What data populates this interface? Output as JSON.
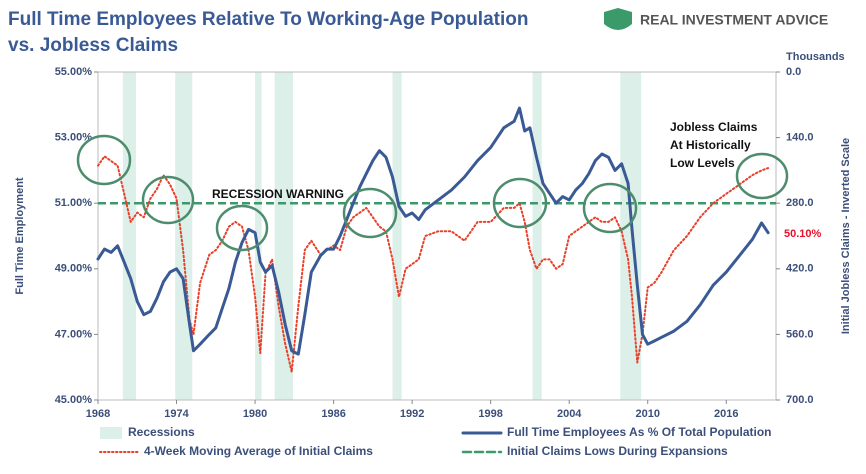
{
  "chart_data": {
    "type": "line",
    "title": [
      "Full Time Employees Relative To Working-Age Population",
      "vs. Jobless Claims"
    ],
    "source_logo": "REAL INVESTMENT ADVICE",
    "ylabel": "Full Time Employment",
    "y2label": "Initial Jobless Claims - Inverted Scale",
    "y2unit": "Thousands",
    "y2inverted": true,
    "xlim": [
      1968,
      2019.8
    ],
    "xticks": [
      1968,
      1974,
      1980,
      1986,
      1992,
      1998,
      2004,
      2010,
      2016
    ],
    "ylim": [
      45,
      55
    ],
    "yticks": [
      {
        "value": 45,
        "label": "45.00%"
      },
      {
        "value": 47,
        "label": "47.00%"
      },
      {
        "value": 49,
        "label": "49.00%"
      },
      {
        "value": 51,
        "label": "51.00%"
      },
      {
        "value": 53,
        "label": "53.00%"
      },
      {
        "value": 55,
        "label": "55.00%"
      }
    ],
    "y2lim": [
      0,
      700
    ],
    "y2ticks": [
      {
        "value": 0,
        "label": "0.0"
      },
      {
        "value": 140,
        "label": "140.0"
      },
      {
        "value": 280,
        "label": "280.0"
      },
      {
        "value": 420,
        "label": "420.0"
      },
      {
        "value": 560,
        "label": "560.0"
      },
      {
        "value": 700,
        "label": "700.0"
      }
    ],
    "recessions": {
      "name": "Recessions",
      "color": "#dcefe9",
      "periods": [
        [
          1969.9,
          1970.9
        ],
        [
          1973.9,
          1975.2
        ],
        [
          1980.0,
          1980.5
        ],
        [
          1981.5,
          1982.9
        ],
        [
          1990.5,
          1991.2
        ],
        [
          2001.2,
          2001.9
        ],
        [
          2007.9,
          2009.5
        ]
      ]
    },
    "x": [
      1968.0,
      1968.5,
      1969.0,
      1969.5,
      1970.0,
      1970.5,
      1971.0,
      1971.5,
      1972.0,
      1972.5,
      1973.0,
      1973.5,
      1974.0,
      1974.5,
      1975.0,
      1975.3,
      1975.8,
      1976.5,
      1977.0,
      1977.5,
      1978.0,
      1978.5,
      1979.0,
      1979.5,
      1980.0,
      1980.4,
      1980.8,
      1981.3,
      1981.8,
      1982.3,
      1982.8,
      1983.3,
      1983.8,
      1984.3,
      1985.0,
      1985.5,
      1986.0,
      1986.5,
      1987.0,
      1987.5,
      1988.0,
      1988.5,
      1989.0,
      1989.5,
      1990.0,
      1990.5,
      1991.0,
      1991.5,
      1992.0,
      1992.5,
      1993.0,
      1994.0,
      1995.0,
      1996.0,
      1997.0,
      1998.0,
      1999.0,
      1999.8,
      2000.2,
      2000.6,
      2001.0,
      2001.5,
      2002.0,
      2002.5,
      2003.0,
      2003.5,
      2004.0,
      2004.5,
      2005.0,
      2005.5,
      2006.0,
      2006.5,
      2007.0,
      2007.5,
      2008.0,
      2008.5,
      2008.8,
      2009.2,
      2009.6,
      2010.0,
      2010.5,
      2011.0,
      2012.0,
      2013.0,
      2014.0,
      2015.0,
      2016.0,
      2017.0,
      2018.0,
      2018.7,
      2019.2
    ],
    "series": [
      {
        "name": "Full Time Employees As % Of Total Population",
        "color": "#3a5a95",
        "axis": "y",
        "style": "solid",
        "values": [
          49.3,
          49.6,
          49.5,
          49.7,
          49.2,
          48.7,
          48.0,
          47.6,
          47.7,
          48.1,
          48.6,
          48.9,
          49.0,
          48.7,
          47.3,
          46.5,
          46.7,
          47.0,
          47.2,
          47.8,
          48.4,
          49.2,
          49.8,
          50.2,
          50.1,
          49.2,
          48.9,
          49.1,
          48.3,
          47.3,
          46.5,
          46.4,
          47.6,
          48.9,
          49.4,
          49.6,
          49.6,
          50.0,
          50.5,
          51.0,
          51.5,
          51.9,
          52.3,
          52.6,
          52.4,
          51.8,
          50.9,
          50.6,
          50.7,
          50.5,
          50.8,
          51.1,
          51.4,
          51.8,
          52.3,
          52.7,
          53.3,
          53.5,
          53.9,
          53.2,
          53.3,
          52.4,
          51.6,
          51.3,
          51.0,
          51.2,
          51.1,
          51.4,
          51.6,
          51.9,
          52.3,
          52.5,
          52.4,
          52.0,
          52.2,
          51.6,
          50.2,
          48.5,
          47.0,
          46.7,
          46.8,
          46.9,
          47.1,
          47.4,
          47.9,
          48.5,
          48.9,
          49.4,
          49.9,
          50.4,
          50.1
        ]
      },
      {
        "name": "4-Week Moving Average of Initial Claims",
        "color": "#e8402a",
        "axis": "y2",
        "style": "dotted",
        "values": [
          200,
          180,
          190,
          200,
          260,
          320,
          300,
          310,
          270,
          250,
          220,
          240,
          270,
          380,
          530,
          560,
          450,
          390,
          380,
          360,
          330,
          320,
          330,
          380,
          480,
          600,
          430,
          400,
          500,
          580,
          640,
          500,
          380,
          360,
          390,
          380,
          370,
          380,
          330,
          310,
          300,
          290,
          310,
          330,
          340,
          400,
          480,
          420,
          410,
          400,
          350,
          340,
          340,
          360,
          320,
          320,
          290,
          290,
          280,
          320,
          380,
          420,
          400,
          400,
          420,
          410,
          350,
          340,
          330,
          320,
          310,
          320,
          320,
          310,
          340,
          400,
          480,
          620,
          560,
          460,
          450,
          430,
          380,
          350,
          310,
          280,
          260,
          240,
          220,
          210,
          205
        ]
      }
    ],
    "reference_line": {
      "name": "Initial Claims Lows During Expansions",
      "color": "#3a9a6a",
      "value": 280,
      "axis": "y2"
    },
    "annotations": [
      {
        "text": "RECESSION WARNING"
      },
      {
        "text": [
          "Jobless Claims",
          "At Historically",
          "Low Levels"
        ]
      },
      {
        "text": "50.10%",
        "color": "#e8102a"
      }
    ]
  }
}
